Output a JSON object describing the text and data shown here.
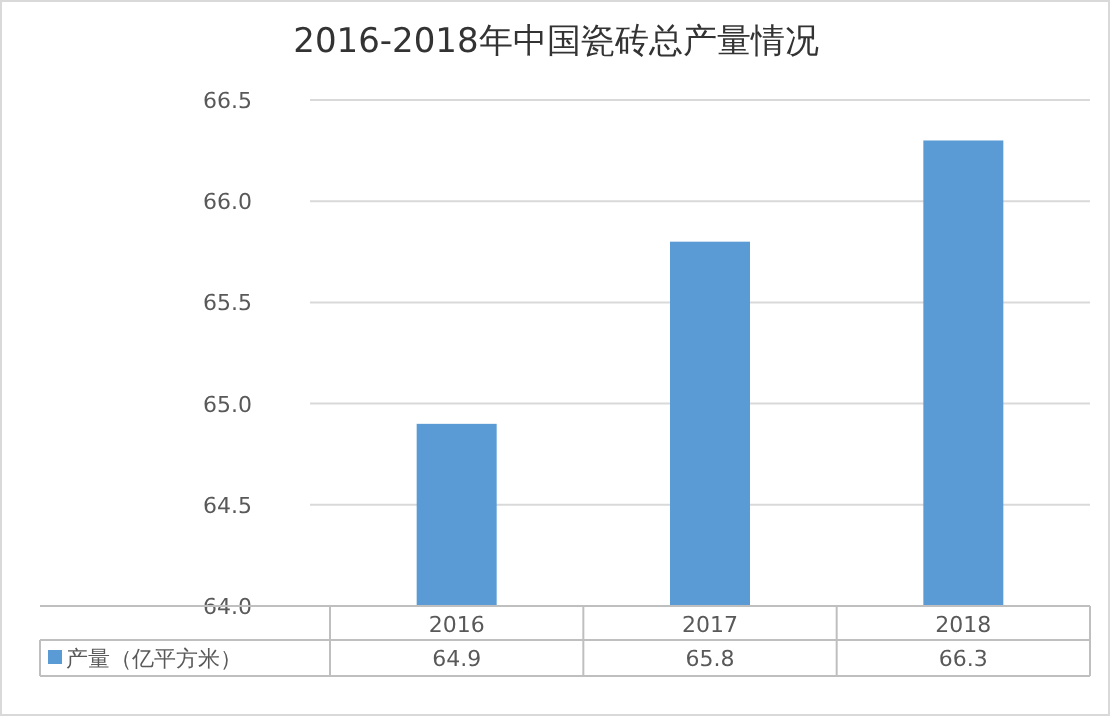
{
  "chart_data": {
    "type": "bar",
    "title": "2016-2018年中国瓷砖总产量情况",
    "categories": [
      "2016",
      "2017",
      "2018"
    ],
    "series": [
      {
        "name": "产量（亿平方米）",
        "color": "#5b9bd5",
        "values": [
          64.9,
          65.8,
          66.3
        ]
      }
    ],
    "ylim": [
      64,
      66.5
    ],
    "yticks": [
      {
        "value": 64,
        "label": "64.0"
      },
      {
        "value": 64.5,
        "label": "64.5"
      },
      {
        "value": 65,
        "label": "65.0"
      },
      {
        "value": 65.5,
        "label": "65.5"
      },
      {
        "value": 66,
        "label": "66.0"
      },
      {
        "value": 66.5,
        "label": "66.5"
      }
    ],
    "grid": "y",
    "legend": "bottom",
    "data_labels": true
  }
}
